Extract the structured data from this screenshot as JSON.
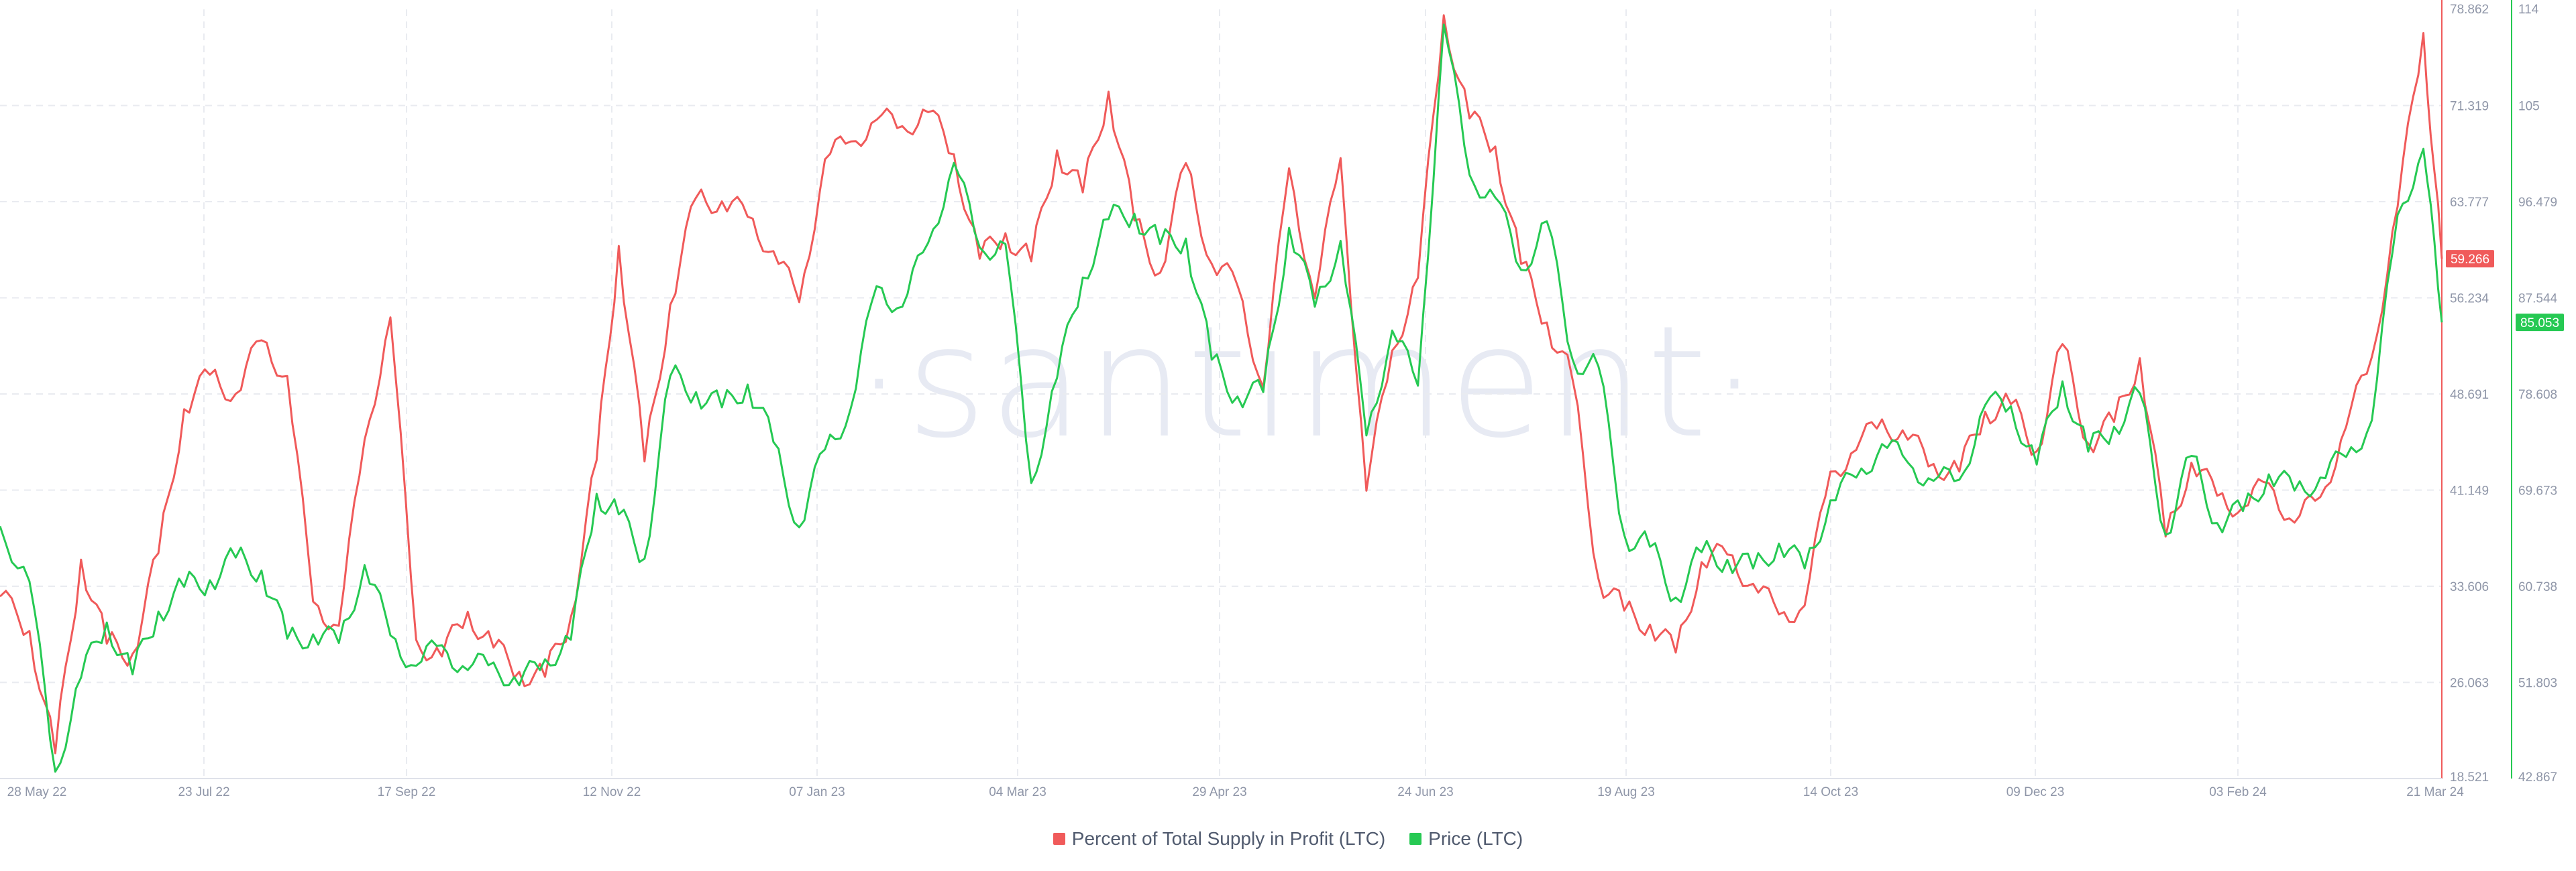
{
  "watermark": "·santiment·",
  "colors": {
    "supply": "#f05a5a",
    "price": "#26c953",
    "grid": "#e9ebf0",
    "axis_text": "#8f96a8"
  },
  "chart_data": {
    "type": "line",
    "title": "",
    "x_range": [
      "2022-05-28",
      "2024-03-21"
    ],
    "x_ticks": [
      "28 May 22",
      "23 Jul 22",
      "17 Sep 22",
      "12 Nov 22",
      "07 Jan 23",
      "04 Mar 23",
      "29 Apr 23",
      "24 Jun 23",
      "19 Aug 23",
      "14 Oct 23",
      "09 Dec 23",
      "03 Feb 24",
      "21 Mar 24"
    ],
    "grid": true,
    "legend_position": "bottom-center",
    "axes": {
      "left": {
        "series": "Percent of Total Supply in Profit (LTC)",
        "range": [
          18.521,
          78.862
        ],
        "ticks": [
          "78.862",
          "71.319",
          "63.777",
          "56.234",
          "48.691",
          "41.149",
          "33.606",
          "26.063",
          "18.521"
        ]
      },
      "right": {
        "series": "Price (LTC)",
        "range": [
          42.867,
          114
        ],
        "ticks": [
          "114",
          "105",
          "96.479",
          "87.544",
          "78.608",
          "69.673",
          "60.738",
          "51.803",
          "42.867"
        ]
      }
    },
    "series": [
      {
        "name": "Percent of Total Supply in Profit (LTC)",
        "axis": "left",
        "color": "#f05a5a",
        "last_value": "59.266",
        "x": [
          "2022-05-28",
          "2022-06-05",
          "2022-06-12",
          "2022-06-19",
          "2022-06-26",
          "2022-07-03",
          "2022-07-10",
          "2022-07-17",
          "2022-07-24",
          "2022-07-31",
          "2022-08-07",
          "2022-08-14",
          "2022-08-21",
          "2022-08-28",
          "2022-09-04",
          "2022-09-11",
          "2022-09-18",
          "2022-09-25",
          "2022-10-02",
          "2022-10-09",
          "2022-10-16",
          "2022-10-23",
          "2022-10-30",
          "2022-11-06",
          "2022-11-12",
          "2022-11-19",
          "2022-11-26",
          "2022-12-03",
          "2022-12-10",
          "2022-12-17",
          "2022-12-24",
          "2022-12-31",
          "2023-01-07",
          "2023-01-14",
          "2023-01-21",
          "2023-01-28",
          "2023-02-04",
          "2023-02-11",
          "2023-02-18",
          "2023-02-25",
          "2023-03-04",
          "2023-03-11",
          "2023-03-18",
          "2023-03-25",
          "2023-04-01",
          "2023-04-08",
          "2023-04-15",
          "2023-04-22",
          "2023-04-29",
          "2023-05-06",
          "2023-05-13",
          "2023-05-20",
          "2023-05-27",
          "2023-06-03",
          "2023-06-10",
          "2023-06-17",
          "2023-06-24",
          "2023-07-01",
          "2023-07-08",
          "2023-07-15",
          "2023-07-22",
          "2023-07-29",
          "2023-08-05",
          "2023-08-12",
          "2023-08-19",
          "2023-08-26",
          "2023-09-02",
          "2023-09-09",
          "2023-09-16",
          "2023-09-23",
          "2023-09-30",
          "2023-10-07",
          "2023-10-14",
          "2023-10-21",
          "2023-10-28",
          "2023-11-04",
          "2023-11-11",
          "2023-11-18",
          "2023-11-25",
          "2023-12-02",
          "2023-12-09",
          "2023-12-16",
          "2023-12-23",
          "2023-12-30",
          "2024-01-06",
          "2024-01-13",
          "2024-01-20",
          "2024-01-27",
          "2024-02-03",
          "2024-02-10",
          "2024-02-17",
          "2024-02-24",
          "2024-03-02",
          "2024-03-09",
          "2024-03-16",
          "2024-03-21"
        ],
        "values": [
          32.8,
          30.1,
          20.5,
          35.7,
          29.1,
          28.3,
          36.2,
          47.5,
          50.2,
          48.7,
          52.9,
          50.1,
          32.4,
          30.5,
          45.1,
          54.7,
          29.4,
          28.1,
          31.6,
          28.8,
          26.9,
          26.5,
          31.2,
          43.5,
          60.3,
          43.4,
          55.7,
          64.1,
          63.8,
          62.6,
          59.9,
          55.9,
          67.1,
          68.5,
          70.2,
          69.7,
          70.8,
          67.5,
          59.3,
          61.3,
          59.1,
          67.8,
          64.5,
          72.4,
          62.3,
          58.2,
          66.8,
          58.9,
          57.2,
          49.2,
          66.4,
          56.2,
          67.2,
          41.1,
          52.1,
          57.8,
          78.4,
          70.3,
          68.1,
          58.9,
          54.3,
          49.8,
          34.2,
          31.7,
          30.6,
          28.4,
          35.5,
          36.1,
          33.8,
          31.4,
          32.1,
          42.6,
          44.3,
          46.7,
          45.1,
          43.2,
          42.6,
          47.3,
          47.9,
          44.2,
          52.6,
          44.8,
          46.5,
          51.5,
          37.5,
          43.3,
          40.7,
          39.8,
          41.7,
          38.6,
          40.6,
          46.1,
          51.6,
          63.4,
          77.0,
          59.3
        ]
      },
      {
        "name": "Price (LTC)",
        "axis": "right",
        "color": "#26c953",
        "last_value": "85.053",
        "x": [
          "2022-05-28",
          "2022-06-05",
          "2022-06-12",
          "2022-06-19",
          "2022-06-26",
          "2022-07-03",
          "2022-07-10",
          "2022-07-17",
          "2022-07-24",
          "2022-07-31",
          "2022-08-07",
          "2022-08-14",
          "2022-08-21",
          "2022-08-28",
          "2022-09-04",
          "2022-09-11",
          "2022-09-18",
          "2022-09-25",
          "2022-10-02",
          "2022-10-09",
          "2022-10-16",
          "2022-10-23",
          "2022-10-30",
          "2022-11-06",
          "2022-11-12",
          "2022-11-19",
          "2022-11-26",
          "2022-12-03",
          "2022-12-10",
          "2022-12-17",
          "2022-12-24",
          "2022-12-31",
          "2023-01-07",
          "2023-01-14",
          "2023-01-21",
          "2023-01-28",
          "2023-02-04",
          "2023-02-11",
          "2023-02-18",
          "2023-02-25",
          "2023-03-04",
          "2023-03-11",
          "2023-03-18",
          "2023-03-25",
          "2023-04-01",
          "2023-04-08",
          "2023-04-15",
          "2023-04-22",
          "2023-04-29",
          "2023-05-06",
          "2023-05-13",
          "2023-05-20",
          "2023-05-27",
          "2023-06-03",
          "2023-06-10",
          "2023-06-17",
          "2023-06-24",
          "2023-07-01",
          "2023-07-08",
          "2023-07-15",
          "2023-07-22",
          "2023-07-29",
          "2023-08-05",
          "2023-08-12",
          "2023-08-19",
          "2023-08-26",
          "2023-09-02",
          "2023-09-09",
          "2023-09-16",
          "2023-09-23",
          "2023-09-30",
          "2023-10-07",
          "2023-10-14",
          "2023-10-21",
          "2023-10-28",
          "2023-11-04",
          "2023-11-11",
          "2023-11-18",
          "2023-11-25",
          "2023-12-02",
          "2023-12-09",
          "2023-12-16",
          "2023-12-23",
          "2023-12-30",
          "2024-01-06",
          "2024-01-13",
          "2024-01-20",
          "2024-01-27",
          "2024-02-03",
          "2024-02-10",
          "2024-02-17",
          "2024-02-24",
          "2024-03-02",
          "2024-03-09",
          "2024-03-16",
          "2024-03-21"
        ],
        "values": [
          66.2,
          61.1,
          43.5,
          52.2,
          57.3,
          52.5,
          58.3,
          60.6,
          61.2,
          63.3,
          62.1,
          55.8,
          56.2,
          55.4,
          62.6,
          56.1,
          53.3,
          55.2,
          52.9,
          53.6,
          51.5,
          53.9,
          55.7,
          69.2,
          67.3,
          63.2,
          80.1,
          78.6,
          77.2,
          79.3,
          74.0,
          66.1,
          73.3,
          77.1,
          88.4,
          86.5,
          92.4,
          99.8,
          92.0,
          92.3,
          70.2,
          79.9,
          89.2,
          94.6,
          95.1,
          92.3,
          92.8,
          81.6,
          78.2,
          78.6,
          93.8,
          86.5,
          92.6,
          74.6,
          84.3,
          79.2,
          112.6,
          98.7,
          96.6,
          89.9,
          94.4,
          81.6,
          81.0,
          65.4,
          64.3,
          59.6,
          63.8,
          63.1,
          62.3,
          64.6,
          62.3,
          68.6,
          70.7,
          73.8,
          72.1,
          70.4,
          70.5,
          77.4,
          77.3,
          71.9,
          79.6,
          73.1,
          75.4,
          78.5,
          65.4,
          72.7,
          66.5,
          67.6,
          71.0,
          69.5,
          70.7,
          72.6,
          76.0,
          95.0,
          101.1,
          85.053
        ]
      }
    ]
  }
}
